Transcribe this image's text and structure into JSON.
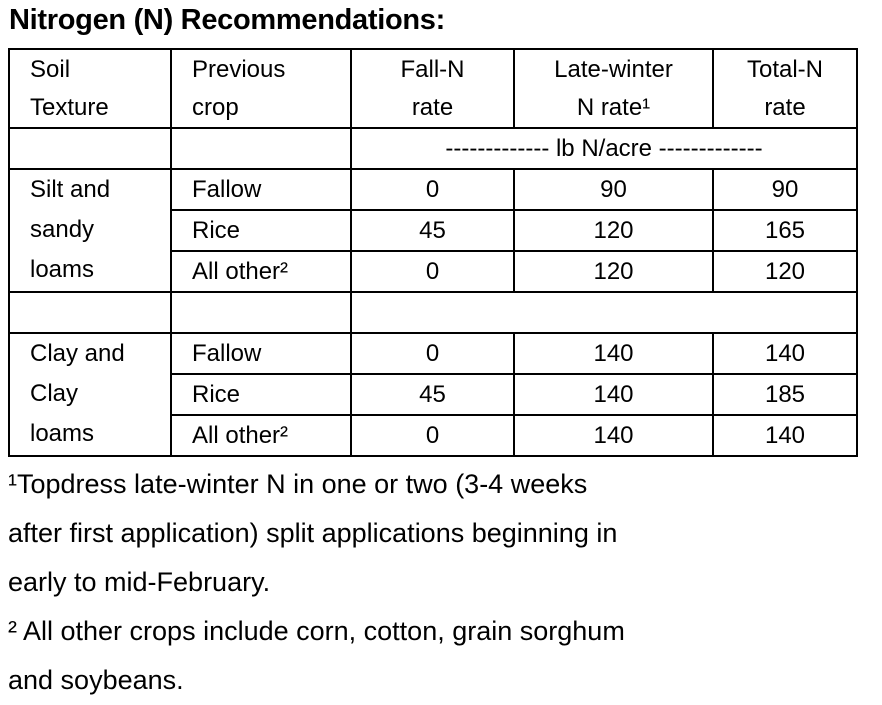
{
  "title": "Nitrogen (N) Recommendations:",
  "table": {
    "header": [
      [
        "Soil",
        "Texture"
      ],
      [
        "Previous",
        "crop"
      ],
      [
        "Fall-N",
        "rate"
      ],
      [
        "Late-winter",
        "N rate¹"
      ],
      [
        "Total-N",
        "rate"
      ]
    ],
    "units": "------------- lb N/acre -------------",
    "groups": [
      {
        "texture": [
          "Silt and",
          "sandy",
          "loams"
        ],
        "rows": [
          [
            "Fallow",
            0,
            90,
            90
          ],
          [
            "Rice",
            45,
            120,
            165
          ],
          [
            "All other²",
            0,
            120,
            120
          ]
        ]
      },
      {
        "texture": [
          "Clay and",
          "Clay",
          "loams"
        ],
        "rows": [
          [
            "Fallow",
            0,
            140,
            140
          ],
          [
            "Rice",
            45,
            140,
            185
          ],
          [
            "All other²",
            0,
            140,
            140
          ]
        ]
      }
    ]
  },
  "footnotes": [
    [
      "¹Topdress late-winter N in one or two (3-4 weeks",
      "after first application) split applications beginning in",
      "early to mid-February."
    ],
    [
      "² All other crops include corn, cotton, grain sorghum",
      "and soybeans."
    ]
  ]
}
